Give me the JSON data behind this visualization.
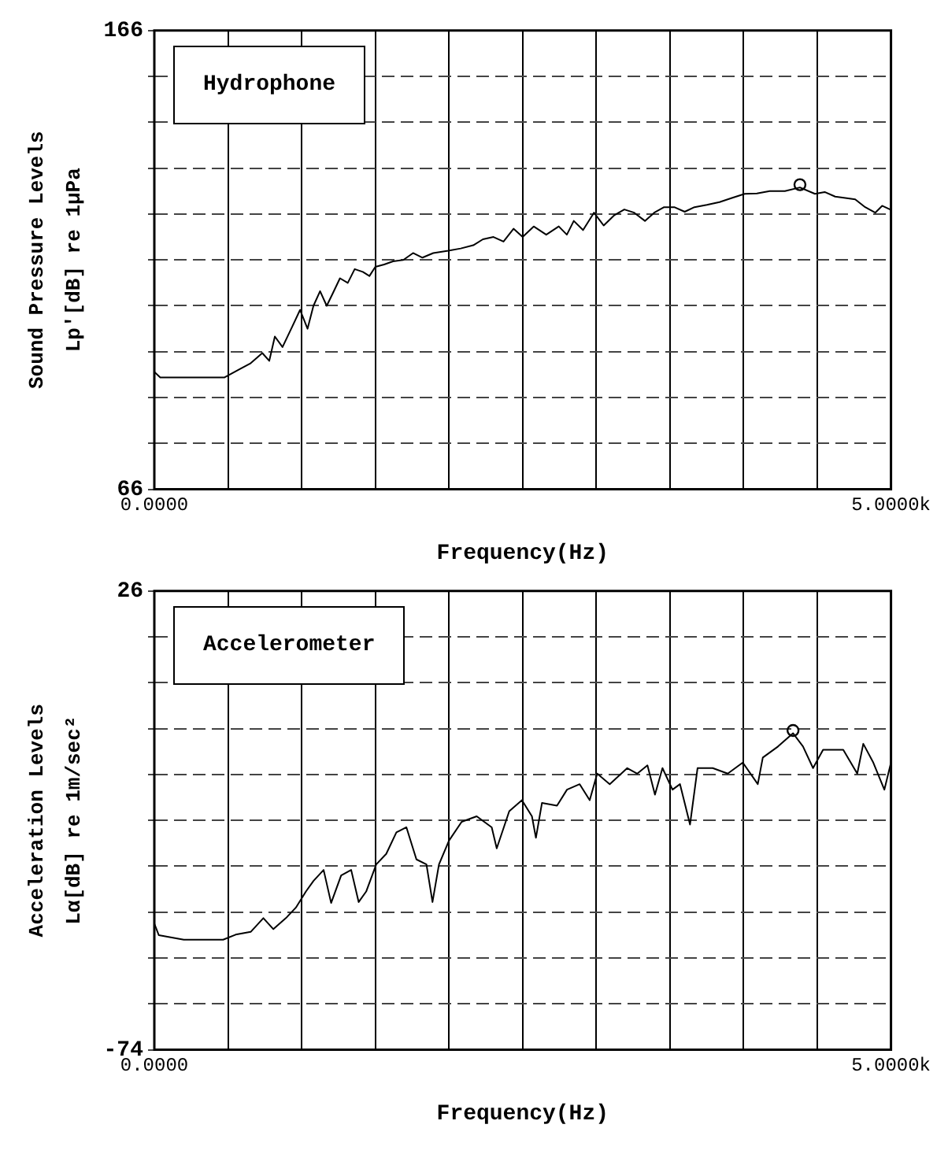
{
  "chart_data": [
    {
      "type": "line",
      "xlabel": "Frequency(Hz)",
      "ylabel": "Sound Pressure Levels\nLp'[dB] re 1μPa",
      "annotations": [
        "Hydrophone"
      ],
      "xlim": [
        0,
        5000
      ],
      "xticks": [
        {
          "value": 0,
          "label": "0.0000"
        },
        {
          "value": 500,
          "label": null
        },
        {
          "value": 1000,
          "label": null
        },
        {
          "value": 1500,
          "label": null
        },
        {
          "value": 2000,
          "label": null
        },
        {
          "value": 2500,
          "label": null
        },
        {
          "value": 3000,
          "label": null
        },
        {
          "value": 3500,
          "label": null
        },
        {
          "value": 4000,
          "label": null
        },
        {
          "value": 4500,
          "label": null
        },
        {
          "value": 5000,
          "label": "5.0000k"
        }
      ],
      "ylim": [
        66,
        166
      ],
      "yticks": [
        66,
        {
          "value": 76,
          "label": null
        },
        {
          "value": 86,
          "label": null
        },
        {
          "value": 96,
          "label": null
        },
        {
          "value": 106,
          "label": null
        },
        {
          "value": 116,
          "label": null
        },
        {
          "value": 126,
          "label": null
        },
        {
          "value": 136,
          "label": null
        },
        {
          "value": 146,
          "label": null
        },
        {
          "value": 156,
          "label": null
        },
        166
      ],
      "grid": true,
      "legend": false,
      "series": [
        {
          "type": "line",
          "color": "#000000",
          "marker": "none",
          "x": [
            0,
            40,
            200,
            477,
            580,
            650,
            733,
            780,
            818,
            870,
            938,
            989,
            1040,
            1080,
            1125,
            1170,
            1211,
            1260,
            1313,
            1360,
            1415,
            1460,
            1500,
            1560,
            1620,
            1690,
            1756,
            1820,
            1893,
            1995,
            2080,
            2165,
            2230,
            2302,
            2370,
            2438,
            2500,
            2575,
            2660,
            2745,
            2800,
            2847,
            2910,
            2984,
            3050,
            3120,
            3190,
            3257,
            3330,
            3393,
            3460,
            3529,
            3600,
            3666,
            3750,
            3836,
            3920,
            4007,
            4090,
            4177,
            4280,
            4382,
            4484,
            4550,
            4621,
            4690,
            4757,
            4825,
            4893,
            4940,
            5000
          ],
          "values": [
            91.6,
            90.4,
            90.4,
            90.4,
            92.2,
            93.4,
            95.7,
            94,
            99.3,
            97,
            101.6,
            105.1,
            101,
            106,
            109.2,
            106,
            108.7,
            112,
            111,
            114,
            113.4,
            112.5,
            114.5,
            115,
            115.7,
            116,
            117.5,
            116.5,
            117.5,
            118,
            118.5,
            119.2,
            120.5,
            121,
            120,
            122.8,
            121,
            123.3,
            121.5,
            123.3,
            121.5,
            124.5,
            122.5,
            126.3,
            123.5,
            125.7,
            127,
            126.3,
            124.5,
            126.3,
            127.5,
            127.5,
            126.5,
            127.5,
            128,
            128.6,
            129.5,
            130.4,
            130.5,
            131,
            131,
            131.8,
            130.4,
            130.8,
            129.8,
            129.5,
            129.2,
            127.5,
            126.3,
            127.8,
            126.9
          ]
        },
        {
          "type": "scatter",
          "color": "#000000",
          "marker": "circle",
          "x": [
            4382
          ],
          "values": [
            132.4
          ]
        }
      ]
    },
    {
      "type": "line",
      "xlabel": "Frequency(Hz)",
      "ylabel": "Acceleration Levels\nLα[dB] re 1m/sec²",
      "annotations": [
        "Accelerometer"
      ],
      "xlim": [
        0,
        5000
      ],
      "xticks": [
        {
          "value": 0,
          "label": "0.0000"
        },
        {
          "value": 500,
          "label": null
        },
        {
          "value": 1000,
          "label": null
        },
        {
          "value": 1500,
          "label": null
        },
        {
          "value": 2000,
          "label": null
        },
        {
          "value": 2500,
          "label": null
        },
        {
          "value": 3000,
          "label": null
        },
        {
          "value": 3500,
          "label": null
        },
        {
          "value": 4000,
          "label": null
        },
        {
          "value": 4500,
          "label": null
        },
        {
          "value": 5000,
          "label": "5.0000k"
        }
      ],
      "ylim": [
        -74,
        26
      ],
      "yticks": [
        -74,
        {
          "value": -64,
          "label": null
        },
        {
          "value": -54,
          "label": null
        },
        {
          "value": -44,
          "label": null
        },
        {
          "value": -34,
          "label": null
        },
        {
          "value": -24,
          "label": null
        },
        {
          "value": -14,
          "label": null
        },
        {
          "value": -4,
          "label": null
        },
        {
          "value": 6,
          "label": null
        },
        {
          "value": 16,
          "label": null
        },
        26
      ],
      "grid": true,
      "legend": false,
      "series": [
        {
          "type": "line",
          "color": "#000000",
          "marker": "none",
          "x": [
            0,
            30,
            200,
            467,
            552,
            654,
            740,
            808,
            893,
            961,
            1029,
            1080,
            1149,
            1200,
            1268,
            1336,
            1387,
            1438,
            1506,
            1574,
            1643,
            1711,
            1779,
            1847,
            1888,
            1932,
            2000,
            2086,
            2188,
            2290,
            2324,
            2409,
            2495,
            2563,
            2590,
            2631,
            2733,
            2801,
            2887,
            2955,
            3006,
            3091,
            3210,
            3278,
            3347,
            3398,
            3449,
            3517,
            3568,
            3636,
            3687,
            3790,
            3892,
            3994,
            4096,
            4130,
            4233,
            4335,
            4403,
            4471,
            4539,
            4676,
            4771,
            4812,
            4880,
            4955,
            5000
          ],
          "values": [
            -46.5,
            -49,
            -50,
            -50,
            -48.9,
            -48.3,
            -45.3,
            -47.7,
            -45.3,
            -43,
            -39.5,
            -37.2,
            -34.8,
            -42,
            -36,
            -34.8,
            -41.8,
            -39.5,
            -33.6,
            -31.3,
            -26.6,
            -25.5,
            -32.5,
            -33.6,
            -41.8,
            -33.6,
            -28.4,
            -24.3,
            -23.1,
            -25.5,
            -30.1,
            -22,
            -19.6,
            -23.1,
            -27.8,
            -20.2,
            -20.8,
            -17.3,
            -16.1,
            -19.6,
            -13.8,
            -16.1,
            -12.6,
            -13.8,
            -12,
            -18.4,
            -12.6,
            -17.3,
            -16.1,
            -24.9,
            -12.6,
            -12.6,
            -13.8,
            -11.4,
            -16.1,
            -10.3,
            -7.9,
            -5,
            -7.9,
            -12.6,
            -8.6,
            -8.6,
            -13.8,
            -7.3,
            -11.4,
            -17.3,
            -11.4
          ]
        },
        {
          "type": "scatter",
          "color": "#000000",
          "marker": "circle",
          "x": [
            4335
          ],
          "values": [
            -4.4
          ]
        }
      ]
    }
  ]
}
